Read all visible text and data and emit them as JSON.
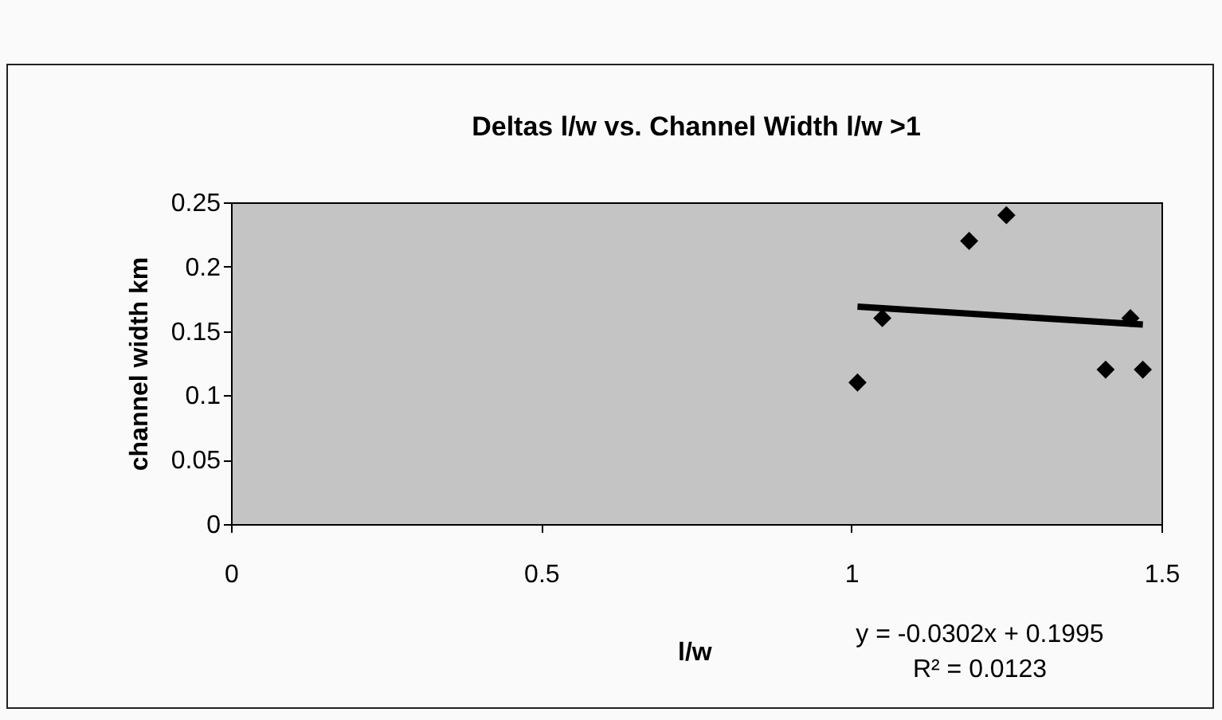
{
  "chart_data": {
    "type": "scatter",
    "title": "Deltas l/w vs. Channel Width l/w >1",
    "xlabel": "l/w",
    "ylabel": "channel width km",
    "annotations": [
      "y = -0.0302x + 0.1995",
      "R² = 0.0123"
    ],
    "series": [
      {
        "color": "#000000",
        "x": [
          1.01,
          1.05,
          1.19,
          1.25,
          1.41,
          1.45,
          1.47
        ],
        "values": [
          0.11,
          0.16,
          0.22,
          0.24,
          0.12,
          0.16,
          0.12
        ]
      },
      {
        "type": "line",
        "color": "#000000",
        "marker": "none",
        "x": [
          1.01,
          1.47
        ],
        "values": [
          0.169,
          0.155
        ]
      }
    ],
    "xlim": [
      0,
      1.5
    ],
    "xticks": [
      0,
      0.5,
      1,
      1.5
    ],
    "ylim": [
      0,
      0.25
    ],
    "yticks": [
      0,
      0.05,
      0.1,
      0.15,
      0.2,
      0.25
    ],
    "grid": false,
    "marker": "diamond"
  }
}
